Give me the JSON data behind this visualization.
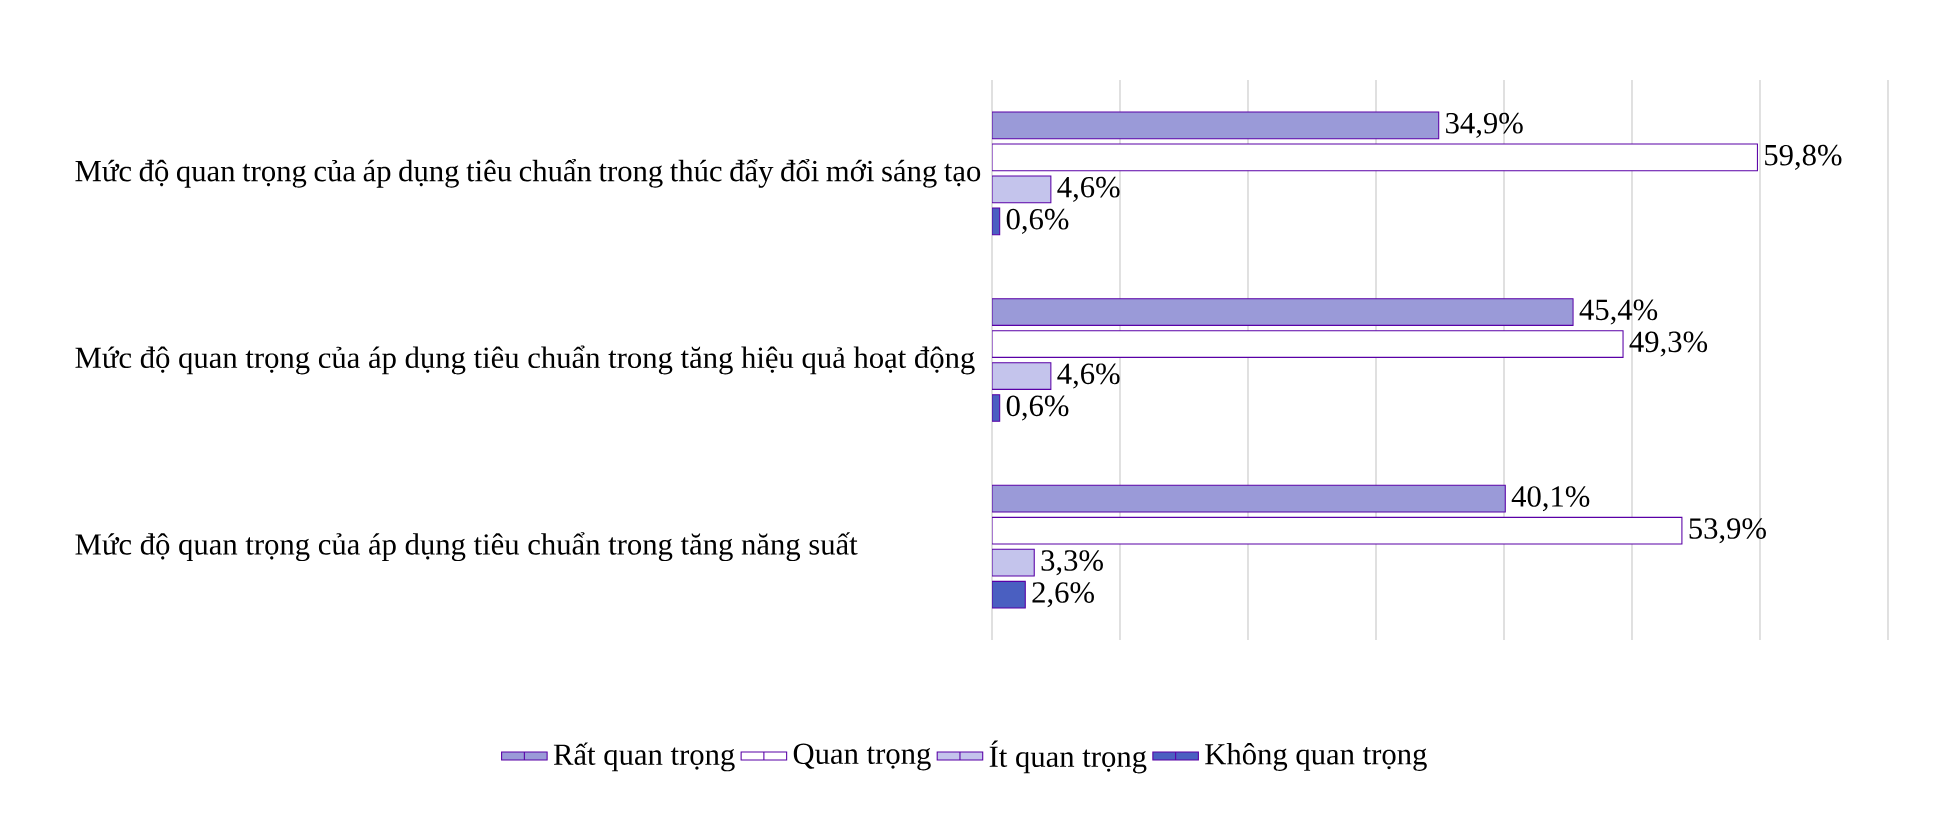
{
  "chart_data": {
    "type": "bar",
    "orientation": "horizontal",
    "categories": [
      "Mức độ quan trọng của áp dụng tiêu chuẩn trong thúc đẩy đổi mới sáng tạo",
      "Mức độ quan trọng của áp dụng tiêu chuẩn trong tăng hiệu quả hoạt động",
      "Mức độ quan trọng của áp dụng tiêu chuẩn trong tăng năng suất"
    ],
    "series": [
      {
        "name": "Rất quan trọng",
        "color": "#9a9ad8",
        "values": [
          34.9,
          45.4,
          40.1
        ],
        "value_labels": [
          "34,9%",
          "45,4%",
          "40,1%"
        ]
      },
      {
        "name": "Quan trọng",
        "color": "#ffffff",
        "values": [
          59.8,
          49.3,
          53.9
        ],
        "value_labels": [
          "59,8%",
          "49,3%",
          "53,9%"
        ]
      },
      {
        "name": "Ít quan trọng",
        "color": "#c4c4ec",
        "values": [
          4.6,
          4.6,
          3.3
        ],
        "value_labels": [
          "4,6%",
          "4,6%",
          "3,3%"
        ]
      },
      {
        "name": "Không quan trọng",
        "color": "#4a5fc1",
        "values": [
          0.6,
          0.6,
          2.6
        ],
        "value_labels": [
          "0,6%",
          "0,6%",
          "2,6%"
        ]
      }
    ],
    "xlim": [
      0,
      70
    ],
    "xticks": [
      {
        "value": 0,
        "label": null
      },
      {
        "value": 10,
        "label": null
      },
      {
        "value": 20,
        "label": null
      },
      {
        "value": 30,
        "label": null
      },
      {
        "value": 40,
        "label": null
      },
      {
        "value": 50,
        "label": null
      },
      {
        "value": 60,
        "label": null
      },
      {
        "value": 70,
        "label": null
      }
    ],
    "tick_labels": "y",
    "grid": "x",
    "legend": "bottom"
  }
}
